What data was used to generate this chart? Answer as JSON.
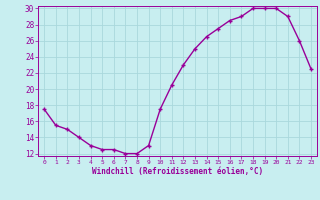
{
  "x": [
    0,
    1,
    2,
    3,
    4,
    5,
    6,
    7,
    8,
    9,
    10,
    11,
    12,
    13,
    14,
    15,
    16,
    17,
    18,
    19,
    20,
    21,
    22,
    23
  ],
  "y": [
    17.5,
    15.5,
    15.0,
    14.0,
    13.0,
    12.5,
    12.5,
    12.0,
    12.0,
    13.0,
    17.5,
    20.5,
    23.0,
    25.0,
    26.5,
    27.5,
    28.5,
    29.0,
    30.0,
    30.0,
    30.0,
    29.0,
    26.0,
    22.5
  ],
  "line_color": "#990099",
  "marker": "+",
  "marker_size": 3,
  "background_color": "#c8eef0",
  "grid_color": "#aad8dc",
  "xlabel": "Windchill (Refroidissement éolien,°C)",
  "xlabel_color": "#990099",
  "tick_color": "#990099",
  "ylim": [
    12,
    30
  ],
  "xlim": [
    -0.5,
    23.5
  ],
  "yticks": [
    12,
    14,
    16,
    18,
    20,
    22,
    24,
    26,
    28,
    30
  ],
  "xticks": [
    0,
    1,
    2,
    3,
    4,
    5,
    6,
    7,
    8,
    9,
    10,
    11,
    12,
    13,
    14,
    15,
    16,
    17,
    18,
    19,
    20,
    21,
    22,
    23
  ],
  "line_width": 1.0,
  "ytick_fontsize": 5.5,
  "xtick_fontsize": 4.5,
  "xlabel_fontsize": 5.5
}
